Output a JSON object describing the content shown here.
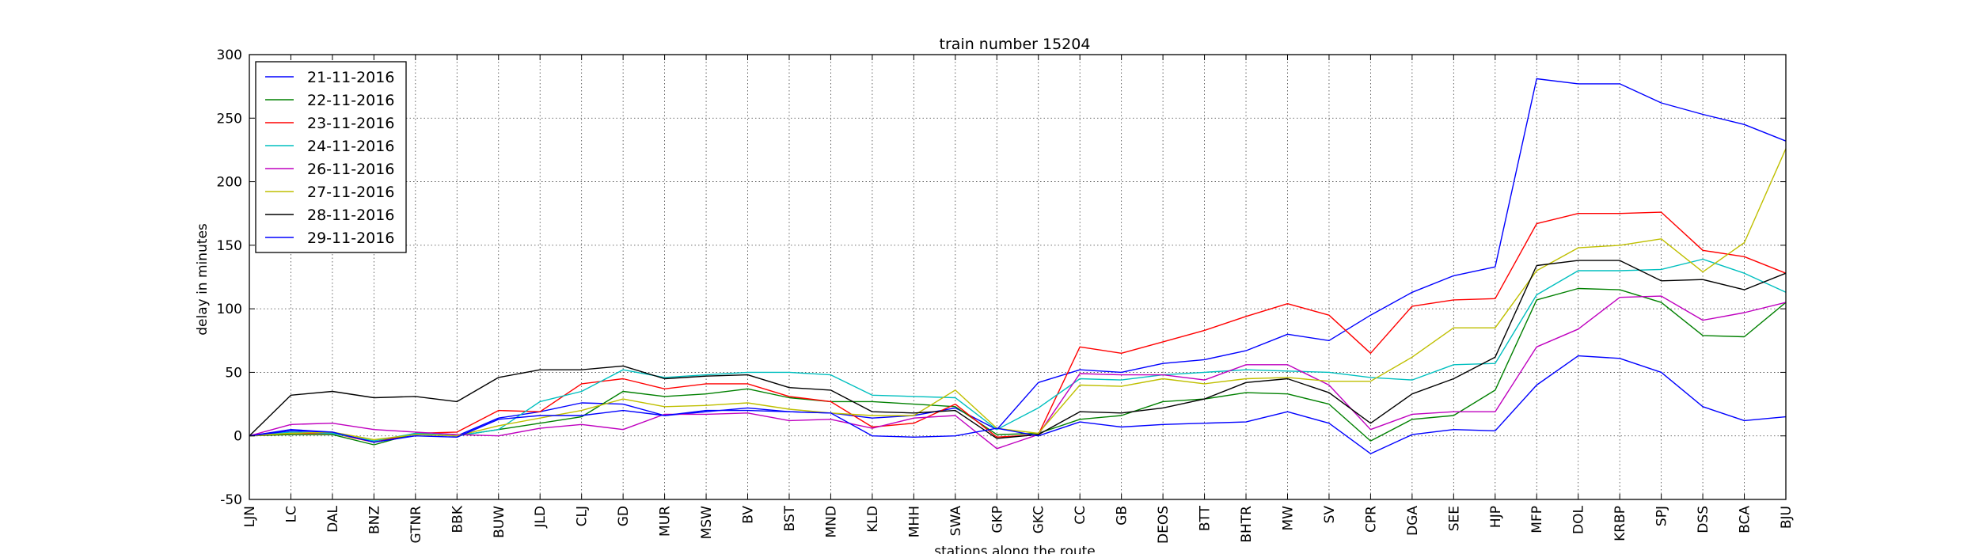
{
  "chart_data": {
    "type": "line",
    "title": "train number 15204",
    "xlabel": "stations along the route",
    "ylabel": "delay in minutes",
    "ylim": [
      -50,
      300
    ],
    "yticks": [
      -50,
      0,
      50,
      100,
      150,
      200,
      250,
      300
    ],
    "grid": true,
    "legend_position": "top-left",
    "categories": [
      "LJN",
      "LC",
      "DAL",
      "BNZ",
      "GTNR",
      "BBK",
      "BUW",
      "JLD",
      "CLJ",
      "GD",
      "MUR",
      "MSW",
      "BV",
      "BST",
      "MND",
      "KLD",
      "MHH",
      "SWA",
      "GKP",
      "GKC",
      "CC",
      "GB",
      "DEOS",
      "BTT",
      "BHTR",
      "MW",
      "SV",
      "CPR",
      "DGA",
      "SEE",
      "HJP",
      "MFP",
      "DOL",
      "KRBP",
      "SPJ",
      "DSS",
      "BCA",
      "BJU"
    ],
    "series": [
      {
        "name": "21-11-2016",
        "color": "#0000ff",
        "values": [
          0,
          5,
          3,
          -5,
          1,
          0,
          14,
          19,
          26,
          25,
          16,
          19,
          22,
          19,
          18,
          14,
          16,
          22,
          5,
          42,
          52,
          50,
          57,
          60,
          67,
          80,
          75,
          95,
          113,
          126,
          133,
          281,
          277,
          277,
          262,
          253,
          245,
          232
        ]
      },
      {
        "name": "22-11-2016",
        "color": "#008000",
        "values": [
          0,
          1,
          1,
          -7,
          2,
          0,
          5,
          10,
          15,
          35,
          31,
          33,
          37,
          30,
          27,
          27,
          25,
          23,
          1,
          2,
          13,
          16,
          27,
          29,
          34,
          33,
          25,
          -4,
          13,
          16,
          36,
          107,
          116,
          115,
          105,
          79,
          78,
          105
        ]
      },
      {
        "name": "23-11-2016",
        "color": "#ff0000",
        "values": [
          0,
          2,
          2,
          -5,
          2,
          3,
          20,
          19,
          41,
          45,
          37,
          41,
          41,
          31,
          27,
          7,
          10,
          25,
          -1,
          1,
          70,
          65,
          74,
          83,
          94,
          104,
          95,
          65,
          102,
          107,
          108,
          167,
          175,
          175,
          176,
          146,
          141,
          128
        ]
      },
      {
        "name": "24-11-2016",
        "color": "#00bfbf",
        "values": [
          0,
          3,
          2,
          -4,
          2,
          0,
          5,
          27,
          35,
          52,
          46,
          48,
          50,
          50,
          48,
          32,
          31,
          30,
          5,
          22,
          45,
          44,
          48,
          50,
          52,
          51,
          50,
          46,
          44,
          56,
          57,
          111,
          130,
          130,
          131,
          139,
          128,
          113
        ]
      },
      {
        "name": "26-11-2016",
        "color": "#bf00bf",
        "values": [
          0,
          9,
          10,
          5,
          3,
          1,
          0,
          6,
          9,
          5,
          17,
          17,
          18,
          12,
          13,
          6,
          14,
          16,
          -10,
          1,
          49,
          48,
          48,
          44,
          56,
          56,
          40,
          5,
          17,
          19,
          19,
          70,
          84,
          109,
          110,
          91,
          97,
          105
        ]
      },
      {
        "name": "27-11-2016",
        "color": "#bfbf00",
        "values": [
          0,
          2,
          3,
          -3,
          1,
          0,
          8,
          14,
          20,
          29,
          23,
          24,
          26,
          21,
          18,
          16,
          16,
          36,
          6,
          2,
          40,
          39,
          45,
          41,
          45,
          46,
          43,
          43,
          62,
          85,
          85,
          130,
          148,
          150,
          155,
          129,
          152,
          226
        ]
      },
      {
        "name": "28-11-2016",
        "color": "#000000",
        "values": [
          0,
          32,
          35,
          30,
          31,
          27,
          46,
          52,
          52,
          55,
          45,
          47,
          48,
          38,
          36,
          19,
          18,
          20,
          -2,
          1,
          19,
          18,
          22,
          29,
          42,
          45,
          34,
          10,
          33,
          45,
          62,
          134,
          138,
          138,
          122,
          123,
          115,
          128
        ]
      },
      {
        "name": "29-11-2016",
        "color": "#0000ff",
        "values": [
          0,
          4,
          3,
          -5,
          0,
          -1,
          13,
          16,
          16,
          20,
          16,
          20,
          20,
          19,
          18,
          0,
          -1,
          0,
          6,
          0,
          11,
          7,
          9,
          10,
          11,
          19,
          10,
          -14,
          1,
          5,
          4,
          40,
          63,
          61,
          50,
          23,
          12,
          15
        ]
      }
    ]
  }
}
